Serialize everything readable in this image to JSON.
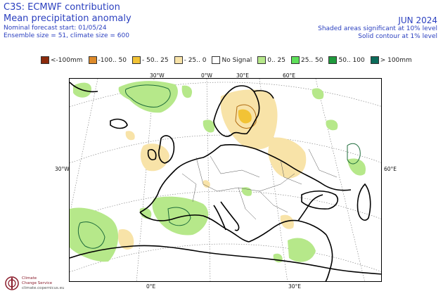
{
  "header": {
    "org": "C3S: ECMWF contribution",
    "title": "Mean precipitation anomaly",
    "forecast_start": "Nominal forecast start: 01/05/24",
    "ensemble": "Ensemble size = 51, climate size = 600",
    "month": "JUN 2024",
    "shaded_note": "Shaded areas significant at 10% level",
    "contour_note": "Solid contour at 1% level"
  },
  "legend": [
    {
      "label": "<-100mm",
      "color": "#8b2a0c"
    },
    {
      "label": "-100.. 50",
      "color": "#dd8a2a"
    },
    {
      "label": "- 50.. 25",
      "color": "#f2c335"
    },
    {
      "label": "- 25.. 0",
      "color": "#f8e3a8"
    },
    {
      "label": "No Signal",
      "color": "#ffffff"
    },
    {
      "label": "0.. 25",
      "color": "#b6e88a"
    },
    {
      "label": "25.. 50",
      "color": "#5ee05a"
    },
    {
      "label": "50.. 100",
      "color": "#1f9a3c"
    },
    {
      "label": "> 100mm",
      "color": "#0b6b5a"
    }
  ],
  "axis_labels": {
    "top": [
      "30°W",
      "0°W",
      "30°E",
      "60°E"
    ],
    "left": "30°W",
    "right": "60°E",
    "bottom": [
      "0°E",
      "30°E"
    ]
  },
  "logo": {
    "line1": "Climate",
    "line2": "Change Service",
    "url": "climate.copernicus.eu"
  }
}
